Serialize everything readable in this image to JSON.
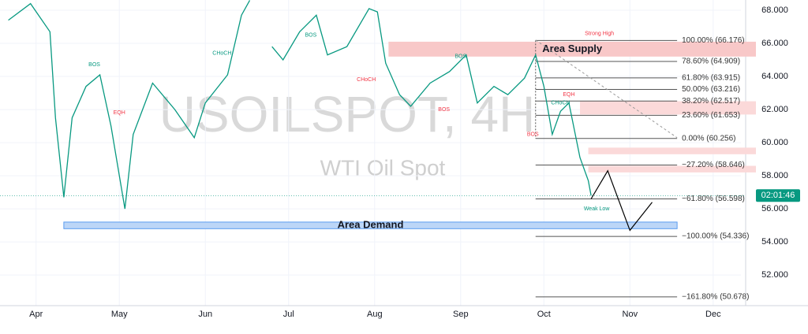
{
  "chart_data": {
    "type": "line",
    "title": "USOILSPOT, 4H",
    "subtitle": "WTI Oil Spot",
    "xlim": [
      78,
      345
    ],
    "ylim": [
      50.15,
      68.62
    ],
    "xticks": [
      {
        "value": 91,
        "label": "Apr"
      },
      {
        "value": 121,
        "label": "May"
      },
      {
        "value": 152,
        "label": "Jun"
      },
      {
        "value": 182,
        "label": "Jul"
      },
      {
        "value": 213,
        "label": "Aug"
      },
      {
        "value": 244,
        "label": "Sep"
      },
      {
        "value": 274,
        "label": "Oct"
      },
      {
        "value": 305,
        "label": "Nov"
      },
      {
        "value": 335,
        "label": "Dec"
      }
    ],
    "yticks": [
      {
        "value": 52,
        "label": "52.000"
      },
      {
        "value": 54,
        "label": "54.000"
      },
      {
        "value": 56,
        "label": "56.000"
      },
      {
        "value": 58,
        "label": "58.000"
      },
      {
        "value": 60,
        "label": "60.000"
      },
      {
        "value": 62,
        "label": "62.000"
      },
      {
        "value": 64,
        "label": "64.000"
      },
      {
        "value": 66,
        "label": "66.000"
      },
      {
        "value": 68,
        "label": "68.000"
      }
    ],
    "series": [
      {
        "name": "USOILSPOT",
        "color": "#089981",
        "x": [
          81,
          89,
          96,
          98,
          101,
          104,
          109,
          114,
          118,
          123,
          126,
          133,
          141,
          148,
          152,
          160,
          165,
          168,
          171,
          176,
          180,
          186,
          192,
          196,
          203,
          211,
          214,
          217,
          222,
          226,
          233,
          240,
          246,
          250,
          256,
          261,
          267,
          271,
          274,
          277,
          280,
          283,
          287,
          290,
          291
        ],
        "values": [
          67.4,
          68.4,
          66.7,
          61.5,
          56.7,
          61.5,
          63.4,
          64.1,
          61.0,
          56.0,
          60.5,
          63.6,
          62.0,
          60.3,
          62.4,
          64.1,
          67.7,
          68.6,
          null,
          65.8,
          65.0,
          66.7,
          67.7,
          65.3,
          65.8,
          68.1,
          67.9,
          64.8,
          62.9,
          62.2,
          63.6,
          64.3,
          65.3,
          62.4,
          63.4,
          62.9,
          63.9,
          65.3,
          63.4,
          60.5,
          61.9,
          62.4,
          59.1,
          57.7,
          56.8
        ]
      }
    ],
    "projection": {
      "color": "#000000",
      "x": [
        291,
        297,
        305,
        313
      ],
      "values": [
        56.6,
        58.3,
        54.7,
        56.4
      ]
    },
    "trend_line": {
      "x": [
        271,
        322
      ],
      "values": [
        66.2,
        60.3
      ]
    },
    "fib_start": 271,
    "fib_end": 322,
    "fib_levels": [
      {
        "value": 66.176,
        "label": "100.00% (66.176)"
      },
      {
        "value": 64.909,
        "label": "78.60% (64.909)"
      },
      {
        "value": 63.915,
        "label": "61.80% (63.915)"
      },
      {
        "value": 63.216,
        "label": "50.00% (63.216)"
      },
      {
        "value": 62.517,
        "label": "38.20% (62.517)"
      },
      {
        "value": 61.653,
        "label": "23.60% (61.653)"
      },
      {
        "value": 60.256,
        "label": "0.00% (60.256)"
      },
      {
        "value": 58.646,
        "label": "−27.20% (58.646)"
      },
      {
        "value": 56.598,
        "label": "−61.80% (56.598)"
      },
      {
        "value": 54.336,
        "label": "−100.00% (54.336)"
      },
      {
        "value": 50.678,
        "label": "−161.80% (50.678)"
      }
    ],
    "zones": [
      {
        "name": "Area Supply",
        "from": 218,
        "low": 65.2,
        "high": 66.1,
        "color": "#f8c8c8"
      },
      {
        "from": 287,
        "low": 61.7,
        "high": 62.5,
        "color": "#fbd9d9"
      },
      {
        "from": 290,
        "low": 59.3,
        "high": 59.7,
        "color": "#fbd9d9"
      },
      {
        "from": 290,
        "low": 58.2,
        "high": 58.6,
        "color": "#fbd9d9"
      },
      {
        "name": "Area Demand",
        "from": 101,
        "to": 322,
        "low": 54.8,
        "high": 55.2,
        "color": "#bcd6f7"
      }
    ],
    "annotations": [
      {
        "text": "Strong High",
        "x": 294,
        "y": 66.6,
        "color": "#f23645"
      },
      {
        "text": "Weak Low",
        "x": 293,
        "y": 56.0,
        "color": "#089981"
      },
      {
        "text": "CHoCH",
        "x": 158,
        "y": 65.4,
        "color": "#089981"
      },
      {
        "text": "CHoCH",
        "x": 210,
        "y": 63.8,
        "color": "#f23645"
      },
      {
        "text": "BOS",
        "x": 112,
        "y": 64.7,
        "color": "#089981"
      },
      {
        "text": "BOS",
        "x": 190,
        "y": 66.5,
        "color": "#089981"
      },
      {
        "text": "BOS",
        "x": 238,
        "y": 62.0,
        "color": "#f23645"
      },
      {
        "text": "BOS",
        "x": 270,
        "y": 60.5,
        "color": "#f23645"
      },
      {
        "text": "BOS",
        "x": 244,
        "y": 65.2,
        "color": "#089981"
      },
      {
        "text": "EQH",
        "x": 283,
        "y": 62.9,
        "color": "#f23645"
      },
      {
        "text": "CHoCH",
        "x": 280,
        "y": 62.4,
        "color": "#089981"
      },
      {
        "text": "EQH",
        "x": 121,
        "y": 61.8,
        "color": "#f23645"
      }
    ],
    "countdown": "02:01:46",
    "last_price": 56.8
  }
}
